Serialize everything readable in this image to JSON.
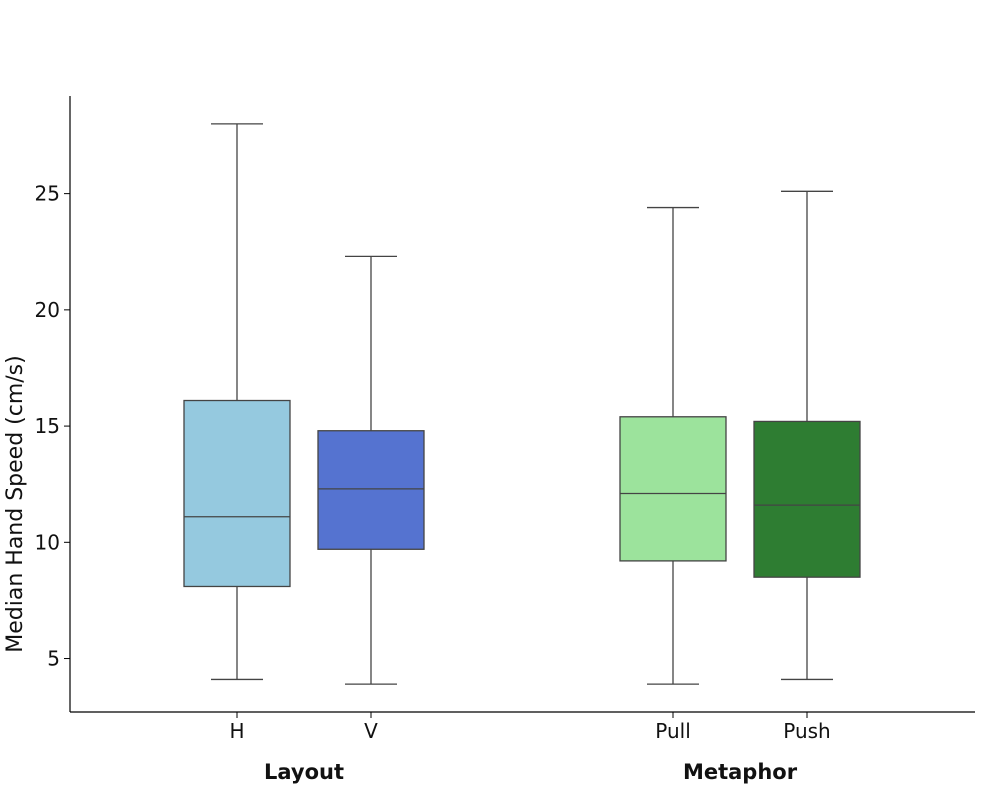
{
  "chart_data": {
    "type": "box",
    "title": "",
    "ylabel": "Median Hand Speed (cm/s)",
    "xlabel": "",
    "ylim": [
      2.7,
      29.2
    ],
    "yticks": [
      5,
      10,
      15,
      20,
      25
    ],
    "grid": false,
    "groups": [
      {
        "label": "Layout",
        "categories": [
          "H",
          "V"
        ]
      },
      {
        "label": "Metaphor",
        "categories": [
          "Pull",
          "Push"
        ]
      }
    ],
    "boxes": [
      {
        "category": "H",
        "group": "Layout",
        "color": "#95c9df",
        "whisker_low": 4.1,
        "q1": 8.1,
        "median": 11.1,
        "q3": 16.1,
        "whisker_high": 28.0
      },
      {
        "category": "V",
        "group": "Layout",
        "color": "#5573d0",
        "whisker_low": 3.9,
        "q1": 9.7,
        "median": 12.3,
        "q3": 14.8,
        "whisker_high": 22.3
      },
      {
        "category": "Pull",
        "group": "Metaphor",
        "color": "#9ce39c",
        "whisker_low": 3.9,
        "q1": 9.2,
        "median": 12.1,
        "q3": 15.4,
        "whisker_high": 24.4
      },
      {
        "category": "Push",
        "group": "Metaphor",
        "color": "#2e7d32",
        "whisker_low": 4.1,
        "q1": 8.5,
        "median": 11.6,
        "q3": 15.2,
        "whisker_high": 25.1
      }
    ]
  }
}
